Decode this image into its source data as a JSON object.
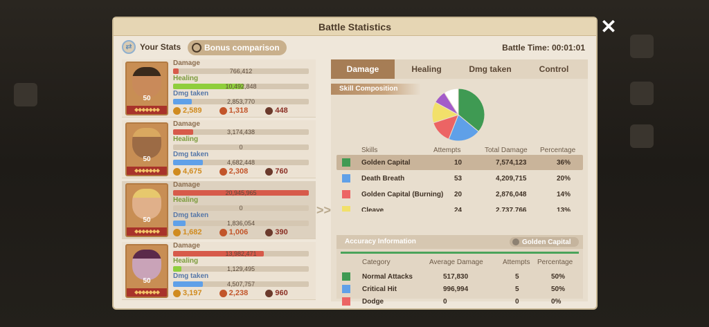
{
  "dialog": {
    "title": "Battle Statistics"
  },
  "top": {
    "your_stats_label": "Your Stats",
    "bonus_button_label": "Bonus comparison",
    "battle_time": "Battle Time: 00:01:01"
  },
  "labels": {
    "damage": "Damage",
    "healing": "Healing",
    "dmg_taken": "Dmg taken"
  },
  "heroes": [
    {
      "level": "50",
      "damage": "766,412",
      "damage_fill": 0.04,
      "healing": "10,492,848",
      "healing_fill": 0.52,
      "dmg_taken": "2,853,770",
      "dmg_taken_fill": 0.14,
      "kills": [
        "2,589",
        "1,318",
        "448"
      ],
      "stars": "◆◆◆◆◆◆◆",
      "face_color": "#c98a5a",
      "hair_color": "#3a2a1c"
    },
    {
      "level": "50",
      "damage": "3,174,438",
      "damage_fill": 0.15,
      "healing": "0",
      "healing_fill": 0,
      "dmg_taken": "4,682,448",
      "dmg_taken_fill": 0.22,
      "kills": [
        "4,675",
        "2,308",
        "760"
      ],
      "stars": "◆◆◆◆◆◆◆",
      "face_color": "#9c6b45",
      "hair_color": "#d9a860"
    },
    {
      "level": "50",
      "damage": "20,945,965",
      "damage_fill": 1.0,
      "healing": "0",
      "healing_fill": 0,
      "dmg_taken": "1,836,054",
      "dmg_taken_fill": 0.09,
      "kills": [
        "1,682",
        "1,006",
        "390"
      ],
      "stars": "◆◆◆◆◆◆◆",
      "face_color": "#e0b08a",
      "hair_color": "#e7c86d"
    },
    {
      "level": "50",
      "damage": "13,982,471",
      "damage_fill": 0.67,
      "healing": "1,129,495",
      "healing_fill": 0.06,
      "dmg_taken": "4,507,757",
      "dmg_taken_fill": 0.22,
      "kills": [
        "3,197",
        "2,238",
        "960"
      ],
      "stars": "◆◆◆◆◆◆◆",
      "face_color": "#c9a3b8",
      "hair_color": "#5b2a4a"
    }
  ],
  "tabs": [
    "Damage",
    "Healing",
    "Dmg taken",
    "Control"
  ],
  "skill_composition": {
    "title": "Skill Composition",
    "columns": [
      "Skills",
      "Attempts",
      "Total Damage",
      "Percentage"
    ],
    "rows": [
      {
        "name": "Golden Capital",
        "attempts": "10",
        "total": "7,574,123",
        "pct": "36%",
        "color": "#3f9a53"
      },
      {
        "name": "Death Breath",
        "attempts": "53",
        "total": "4,209,715",
        "pct": "20%",
        "color": "#5fa0e8"
      },
      {
        "name": "Golden Capital (Burning)",
        "attempts": "20",
        "total": "2,876,048",
        "pct": "14%",
        "color": "#ec6464"
      },
      {
        "name": "Cleave",
        "attempts": "24",
        "total": "2,737,766",
        "pct": "13%",
        "color": "#f2e06a"
      }
    ]
  },
  "pie": {
    "slices": [
      {
        "value": 36,
        "color": "#3f9a53"
      },
      {
        "value": 20,
        "color": "#5fa0e8"
      },
      {
        "value": 14,
        "color": "#ec6464"
      },
      {
        "value": 13,
        "color": "#f2e06a"
      },
      {
        "value": 8,
        "color": "#a35cc9"
      },
      {
        "value": 9,
        "color": "#ffffff"
      }
    ]
  },
  "accuracy": {
    "title": "Accuracy Information",
    "selected_skill": "Golden Capital",
    "columns": [
      "Category",
      "Average Damage",
      "Attempts",
      "Percentage"
    ],
    "rows": [
      {
        "name": "Normal Attacks",
        "avg": "517,830",
        "attempts": "5",
        "pct": "50%",
        "color": "#3f9a53"
      },
      {
        "name": "Critical Hit",
        "avg": "996,994",
        "attempts": "5",
        "pct": "50%",
        "color": "#5fa0e8"
      },
      {
        "name": "Dodge",
        "avg": "0",
        "attempts": "0",
        "pct": "0%",
        "color": "#ec6464"
      }
    ]
  },
  "close_icon": "✕"
}
